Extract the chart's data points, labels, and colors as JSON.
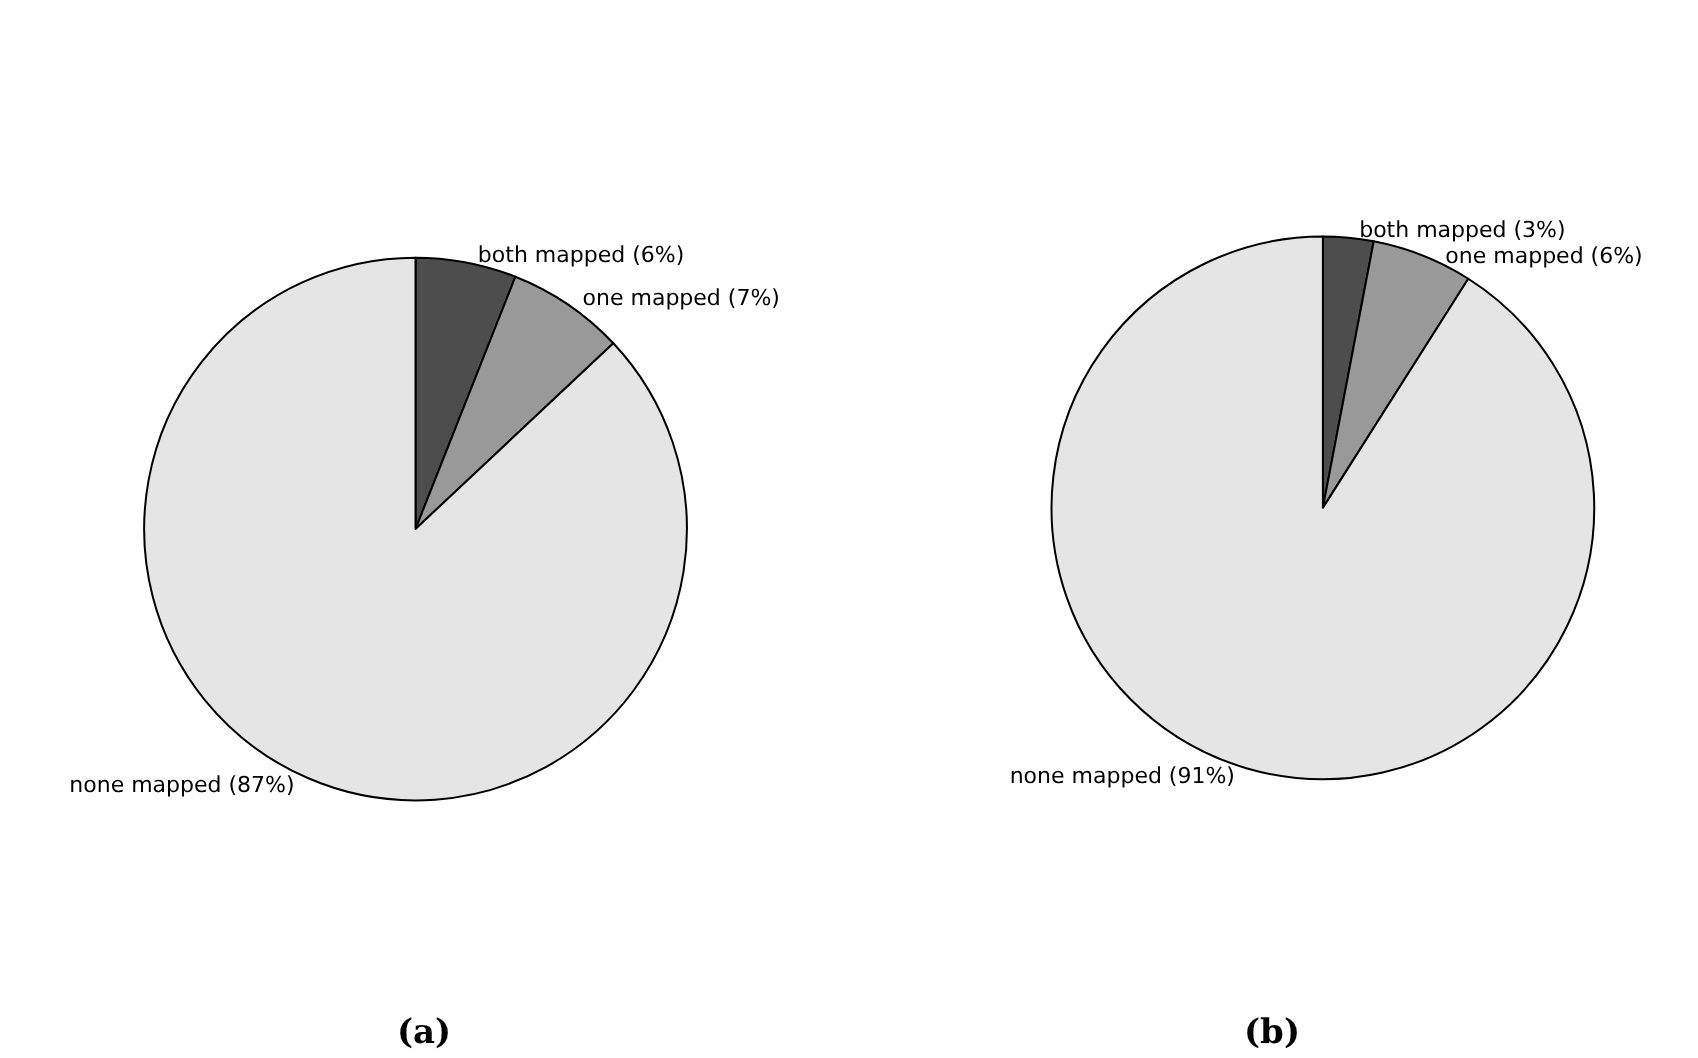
{
  "chart_data": [
    {
      "type": "pie",
      "categories": [
        "both mapped (6%)",
        "one mapped (7%)",
        "none mapped (87%)"
      ],
      "values": [
        6,
        7,
        87
      ],
      "colors": [
        "#4d4d4d",
        "#999999",
        "#e5e5e5"
      ],
      "annotations": [
        "(a)"
      ]
    },
    {
      "type": "pie",
      "categories": [
        "both mapped (3%)",
        "one mapped (6%)",
        "none mapped (91%)"
      ],
      "values": [
        3,
        6,
        91
      ],
      "colors": [
        "#4d4d4d",
        "#999999",
        "#e5e5e5"
      ],
      "annotations": [
        "(b)"
      ]
    }
  ]
}
